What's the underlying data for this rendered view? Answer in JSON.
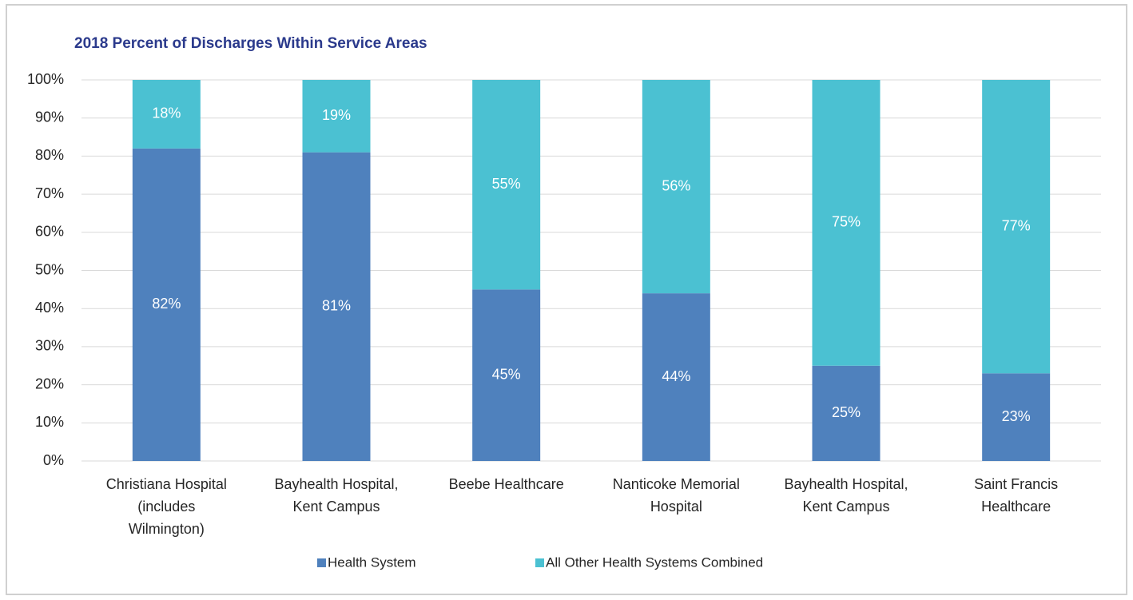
{
  "chart_data": {
    "type": "stacked_bar",
    "title": "2018 Percent of Discharges Within Service Areas",
    "categories": [
      [
        "Christiana Hospital",
        "(includes",
        "Wilmington)"
      ],
      [
        "Bayhealth Hospital,",
        "Kent Campus"
      ],
      [
        "Beebe Healthcare"
      ],
      [
        "Nanticoke Memorial",
        "Hospital"
      ],
      [
        "Bayhealth Hospital,",
        "Kent Campus"
      ],
      [
        "Saint Francis",
        "Healthcare"
      ]
    ],
    "series": [
      {
        "name": "Health System",
        "color": "#4f81bd",
        "values": [
          82,
          81,
          45,
          44,
          25,
          23
        ],
        "value_labels": [
          "82%",
          "81%",
          "45%",
          "44%",
          "25%",
          "23%"
        ]
      },
      {
        "name": "All Other Health Systems Combined",
        "color": "#4bc1d2",
        "values": [
          18,
          19,
          55,
          56,
          75,
          77
        ],
        "value_labels": [
          "18%",
          "19%",
          "55%",
          "56%",
          "75%",
          "77%"
        ]
      }
    ],
    "ylim": [
      0,
      100
    ],
    "yticks": [
      {
        "value": 0,
        "label": "0%"
      },
      {
        "value": 10,
        "label": "10%"
      },
      {
        "value": 20,
        "label": "20%"
      },
      {
        "value": 30,
        "label": "30%"
      },
      {
        "value": 40,
        "label": "40%"
      },
      {
        "value": 50,
        "label": "50%"
      },
      {
        "value": 60,
        "label": "60%"
      },
      {
        "value": 70,
        "label": "70%"
      },
      {
        "value": 80,
        "label": "80%"
      },
      {
        "value": 90,
        "label": "90%"
      },
      {
        "value": 100,
        "label": "100%"
      }
    ],
    "grid": true,
    "legend": "bottom"
  }
}
